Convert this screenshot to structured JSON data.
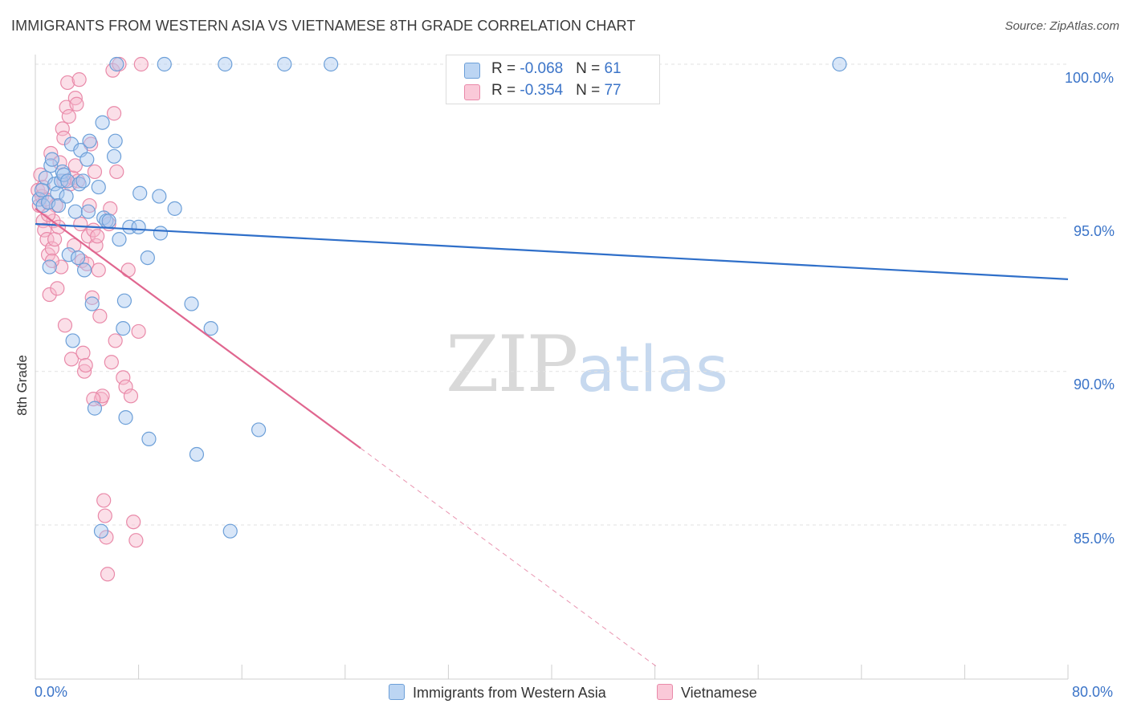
{
  "header": {
    "title": "IMMIGRANTS FROM WESTERN ASIA VS VIETNAMESE 8TH GRADE CORRELATION CHART",
    "source": "Source: ZipAtlas.com"
  },
  "watermark": {
    "zip": "ZIP",
    "atlas": "atlas"
  },
  "legend": {
    "rows": [
      {
        "r_label": "R = ",
        "r_value": "-0.068",
        "n_label": "N = ",
        "n_value": "61"
      },
      {
        "r_label": "R = ",
        "r_value": "-0.354",
        "n_label": "N = ",
        "n_value": "77"
      }
    ]
  },
  "colors": {
    "blue_fill": "#a9c8ef",
    "blue_stroke": "#6c9fd8",
    "blue_line": "#2f6fc9",
    "pink_fill": "#f6b8cc",
    "pink_stroke": "#e98aa9",
    "pink_line": "#e0668f",
    "grid": "#e2e2e2",
    "tick_text": "#3b74c8"
  },
  "chart_data": {
    "type": "scatter",
    "title": "IMMIGRANTS FROM WESTERN ASIA VS VIETNAMESE 8TH GRADE CORRELATION CHART",
    "xlabel": "",
    "ylabel": "8th Grade",
    "xlim": [
      0,
      80
    ],
    "ylim": [
      80.5,
      100.8
    ],
    "x_tick_labels": [
      "0.0%",
      "80.0%"
    ],
    "y_ticks": [
      100,
      95,
      90,
      85
    ],
    "y_tick_labels": [
      "100.0%",
      "95.0%",
      "90.0%",
      "85.0%"
    ],
    "series": [
      {
        "name": "Immigrants from Western Asia",
        "color": "blue",
        "r": -0.068,
        "n": 61,
        "trend": {
          "x": [
            0,
            80
          ],
          "y": [
            94.8,
            93.0
          ]
        },
        "points": [
          [
            0.3,
            95.6
          ],
          [
            0.5,
            95.9
          ],
          [
            0.6,
            95.4
          ],
          [
            0.8,
            96.3
          ],
          [
            1.0,
            95.5
          ],
          [
            1.1,
            93.4
          ],
          [
            1.2,
            96.7
          ],
          [
            1.3,
            96.9
          ],
          [
            1.5,
            96.1
          ],
          [
            1.7,
            95.8
          ],
          [
            1.8,
            95.4
          ],
          [
            2.0,
            96.2
          ],
          [
            2.1,
            96.5
          ],
          [
            2.2,
            96.4
          ],
          [
            2.4,
            95.7
          ],
          [
            2.5,
            96.2
          ],
          [
            2.6,
            93.8
          ],
          [
            2.8,
            97.4
          ],
          [
            2.9,
            91.0
          ],
          [
            3.1,
            95.2
          ],
          [
            3.3,
            93.7
          ],
          [
            3.4,
            96.1
          ],
          [
            3.5,
            97.2
          ],
          [
            3.7,
            96.2
          ],
          [
            3.8,
            93.3
          ],
          [
            4.0,
            96.9
          ],
          [
            4.1,
            95.2
          ],
          [
            4.2,
            97.5
          ],
          [
            4.4,
            92.2
          ],
          [
            4.6,
            88.8
          ],
          [
            4.9,
            96.0
          ],
          [
            5.1,
            84.8
          ],
          [
            5.2,
            98.1
          ],
          [
            5.3,
            95.0
          ],
          [
            5.5,
            94.9
          ],
          [
            5.7,
            94.9
          ],
          [
            6.1,
            97.0
          ],
          [
            6.2,
            97.5
          ],
          [
            6.3,
            100.0
          ],
          [
            6.5,
            94.3
          ],
          [
            6.8,
            91.4
          ],
          [
            6.9,
            92.3
          ],
          [
            7.0,
            88.5
          ],
          [
            7.3,
            94.7
          ],
          [
            8.0,
            94.7
          ],
          [
            8.1,
            95.8
          ],
          [
            8.7,
            93.7
          ],
          [
            8.8,
            87.8
          ],
          [
            9.6,
            95.7
          ],
          [
            9.7,
            94.5
          ],
          [
            10.0,
            100.0
          ],
          [
            10.8,
            95.3
          ],
          [
            12.1,
            92.2
          ],
          [
            12.5,
            87.3
          ],
          [
            13.6,
            91.4
          ],
          [
            14.7,
            100.0
          ],
          [
            15.1,
            84.8
          ],
          [
            17.3,
            88.1
          ],
          [
            19.3,
            100.0
          ],
          [
            22.9,
            100.0
          ],
          [
            62.3,
            100.0
          ]
        ]
      },
      {
        "name": "Vietnamese",
        "color": "pink",
        "r": -0.354,
        "n": 77,
        "trend": {
          "x": [
            0,
            25.2
          ],
          "y": [
            95.3,
            87.5
          ]
        },
        "trend_dashed": {
          "x": [
            25.2,
            48.1
          ],
          "y": [
            87.5,
            80.4
          ]
        },
        "points": [
          [
            0.2,
            95.9
          ],
          [
            0.3,
            95.4
          ],
          [
            0.4,
            96.4
          ],
          [
            0.5,
            95.7
          ],
          [
            0.6,
            94.9
          ],
          [
            0.7,
            94.6
          ],
          [
            0.8,
            95.6
          ],
          [
            0.9,
            94.3
          ],
          [
            1.0,
            93.8
          ],
          [
            1.1,
            92.5
          ],
          [
            1.2,
            97.1
          ],
          [
            1.3,
            94.0
          ],
          [
            1.4,
            94.9
          ],
          [
            1.5,
            94.3
          ],
          [
            1.6,
            95.4
          ],
          [
            1.7,
            92.7
          ],
          [
            1.8,
            94.7
          ],
          [
            1.9,
            96.8
          ],
          [
            2.0,
            93.4
          ],
          [
            2.1,
            97.9
          ],
          [
            2.2,
            97.6
          ],
          [
            2.3,
            91.5
          ],
          [
            2.4,
            98.6
          ],
          [
            2.5,
            99.4
          ],
          [
            2.6,
            98.3
          ],
          [
            2.7,
            96.1
          ],
          [
            2.8,
            90.4
          ],
          [
            2.9,
            96.3
          ],
          [
            3.0,
            94.1
          ],
          [
            3.1,
            98.9
          ],
          [
            3.2,
            98.7
          ],
          [
            3.3,
            96.2
          ],
          [
            3.4,
            99.5
          ],
          [
            3.5,
            94.8
          ],
          [
            3.6,
            93.6
          ],
          [
            3.7,
            90.6
          ],
          [
            3.8,
            90.0
          ],
          [
            3.9,
            90.2
          ],
          [
            4.0,
            93.5
          ],
          [
            4.1,
            94.4
          ],
          [
            4.2,
            95.4
          ],
          [
            4.3,
            97.4
          ],
          [
            4.4,
            92.4
          ],
          [
            4.5,
            94.6
          ],
          [
            4.6,
            96.5
          ],
          [
            4.7,
            94.1
          ],
          [
            4.8,
            94.4
          ],
          [
            4.9,
            93.3
          ],
          [
            5.0,
            91.8
          ],
          [
            5.1,
            89.1
          ],
          [
            5.2,
            89.2
          ],
          [
            5.3,
            85.8
          ],
          [
            5.4,
            85.3
          ],
          [
            5.5,
            84.6
          ],
          [
            5.6,
            83.4
          ],
          [
            5.7,
            94.8
          ],
          [
            5.8,
            95.3
          ],
          [
            5.9,
            90.3
          ],
          [
            6.0,
            99.8
          ],
          [
            6.1,
            98.4
          ],
          [
            6.3,
            96.5
          ],
          [
            6.5,
            100.0
          ],
          [
            6.8,
            89.8
          ],
          [
            7.0,
            89.5
          ],
          [
            7.2,
            93.3
          ],
          [
            7.4,
            89.2
          ],
          [
            7.6,
            85.1
          ],
          [
            7.8,
            84.5
          ],
          [
            8.0,
            91.3
          ],
          [
            8.2,
            100.0
          ],
          [
            0.6,
            96.0
          ],
          [
            1.0,
            95.1
          ],
          [
            1.3,
            93.6
          ],
          [
            2.2,
            96.2
          ],
          [
            3.1,
            96.7
          ],
          [
            4.5,
            89.1
          ],
          [
            6.2,
            91.0
          ]
        ]
      }
    ],
    "legend_position": "top-center"
  }
}
